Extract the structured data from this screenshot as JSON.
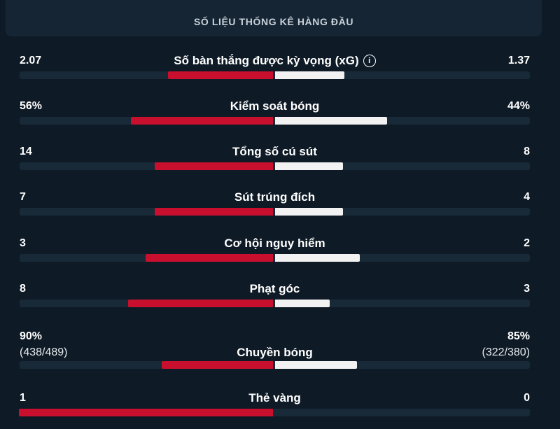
{
  "header": {
    "title": "SỐ LIỆU THỐNG KÊ HÀNG ĐẦU"
  },
  "colors": {
    "home": "#c8102e",
    "away": "#f2f2f2",
    "background": "#0e1a26",
    "track": "#182a38"
  },
  "stats": [
    {
      "label": "Số bàn thắng được kỳ vọng (xG)",
      "home": "2.07",
      "away": "1.37",
      "home_value": 2.07,
      "away_value": 1.37,
      "max": 5,
      "has_info_icon": true
    },
    {
      "label": "Kiểm soát bóng",
      "home": "56%",
      "away": "44%",
      "home_value": 56,
      "away_value": 44,
      "max": 100
    },
    {
      "label": "Tổng số cú sút",
      "home": "14",
      "away": "8",
      "home_value": 14,
      "away_value": 8,
      "max": 30
    },
    {
      "label": "Sút trúng đích",
      "home": "7",
      "away": "4",
      "home_value": 7,
      "away_value": 4,
      "max": 15
    },
    {
      "label": "Cơ hội nguy hiểm",
      "home": "3",
      "away": "2",
      "home_value": 3,
      "away_value": 2,
      "max": 6
    },
    {
      "label": "Phạt góc",
      "home": "8",
      "away": "3",
      "home_value": 8,
      "away_value": 3,
      "max": 14
    },
    {
      "label": "Chuyền bóng",
      "home": "90%",
      "away": "85%",
      "home_sub": "(438/489)",
      "away_sub": "(322/380)",
      "home_value": 438,
      "away_value": 322,
      "max": 1000
    },
    {
      "label": "Thẻ vàng",
      "home": "1",
      "away": "0",
      "home_value": 1,
      "away_value": 0,
      "max": 1
    }
  ]
}
